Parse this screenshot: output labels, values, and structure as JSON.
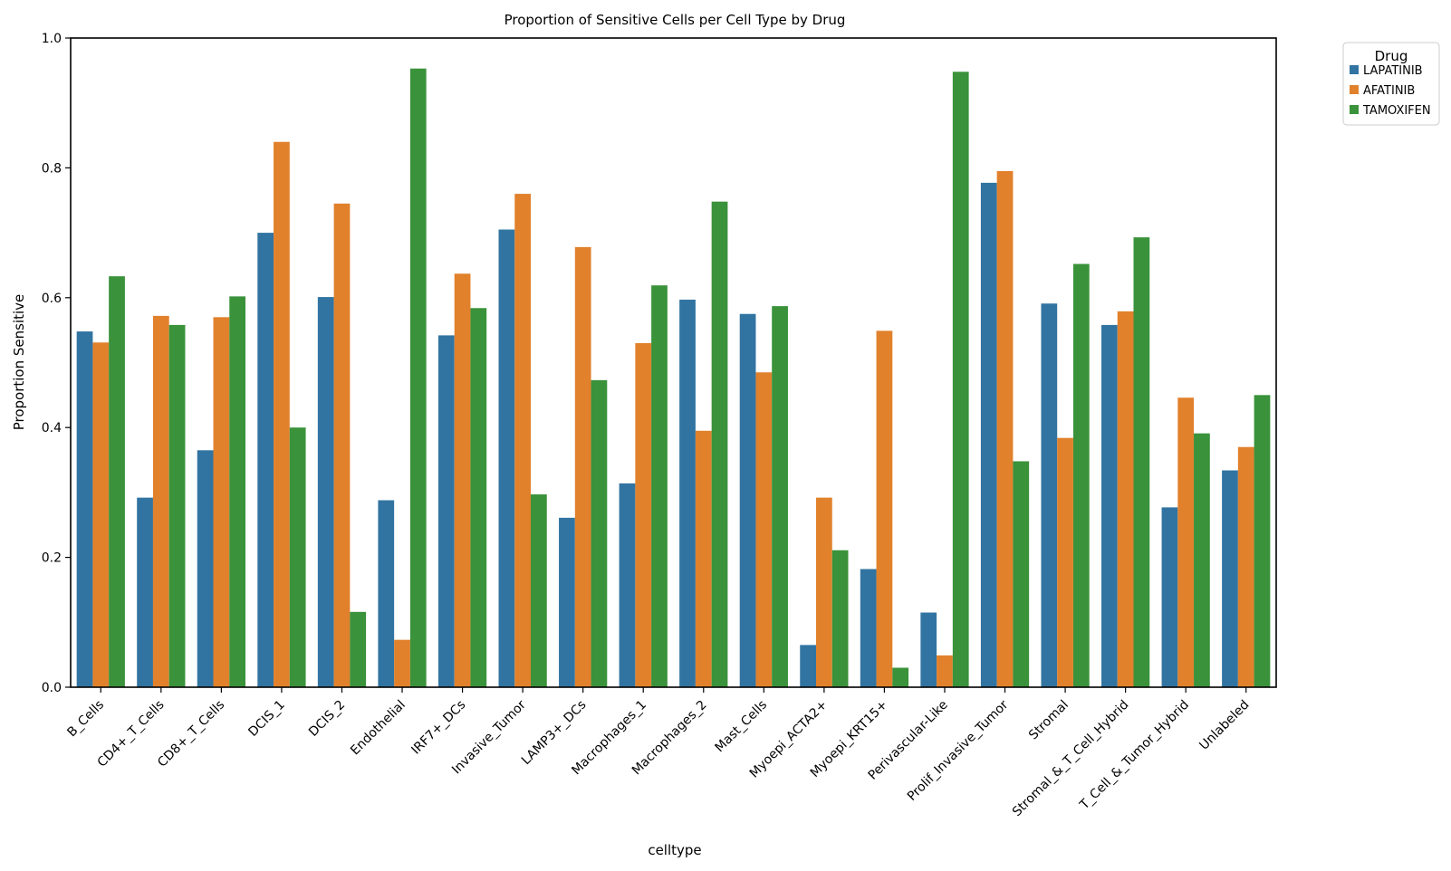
{
  "chart_data": {
    "type": "bar",
    "title": "Proportion of Sensitive Cells per Cell Type by Drug",
    "xlabel": "celltype",
    "ylabel": "Proportion Sensitive",
    "ylim": [
      0.0,
      1.0
    ],
    "yticks": [
      "0.0",
      "0.2",
      "0.4",
      "0.6",
      "0.8",
      "1.0"
    ],
    "grid": false,
    "legend": {
      "title": "Drug",
      "position": "outside top-right"
    },
    "categories": [
      "B_Cells",
      "CD4+_T_Cells",
      "CD8+_T_Cells",
      "DCIS_1",
      "DCIS_2",
      "Endothelial",
      "IRF7+_DCs",
      "Invasive_Tumor",
      "LAMP3+_DCs",
      "Macrophages_1",
      "Macrophages_2",
      "Mast_Cells",
      "Myoepi_ACTA2+",
      "Myoepi_KRT15+",
      "Perivascular-Like",
      "Prolif_Invasive_Tumor",
      "Stromal",
      "Stromal_&_T_Cell_Hybrid",
      "T_Cell_&_Tumor_Hybrid",
      "Unlabeled"
    ],
    "series": [
      {
        "name": "LAPATINIB",
        "color": "#3274a1",
        "values": [
          0.548,
          0.292,
          0.365,
          0.7,
          0.601,
          0.288,
          0.542,
          0.705,
          0.261,
          0.314,
          0.597,
          0.575,
          0.065,
          0.182,
          0.115,
          0.777,
          0.591,
          0.558,
          0.277,
          0.334
        ]
      },
      {
        "name": "AFATINIB",
        "color": "#e1812c",
        "values": [
          0.531,
          0.572,
          0.57,
          0.84,
          0.745,
          0.073,
          0.637,
          0.76,
          0.678,
          0.53,
          0.395,
          0.485,
          0.292,
          0.549,
          0.049,
          0.795,
          0.384,
          0.579,
          0.446,
          0.37
        ]
      },
      {
        "name": "TAMOXIFEN",
        "color": "#3a923a",
        "values": [
          0.633,
          0.558,
          0.602,
          0.4,
          0.116,
          0.953,
          0.584,
          0.297,
          0.473,
          0.619,
          0.748,
          0.587,
          0.211,
          0.03,
          0.948,
          0.348,
          0.652,
          0.693,
          0.391,
          0.45
        ]
      }
    ]
  }
}
